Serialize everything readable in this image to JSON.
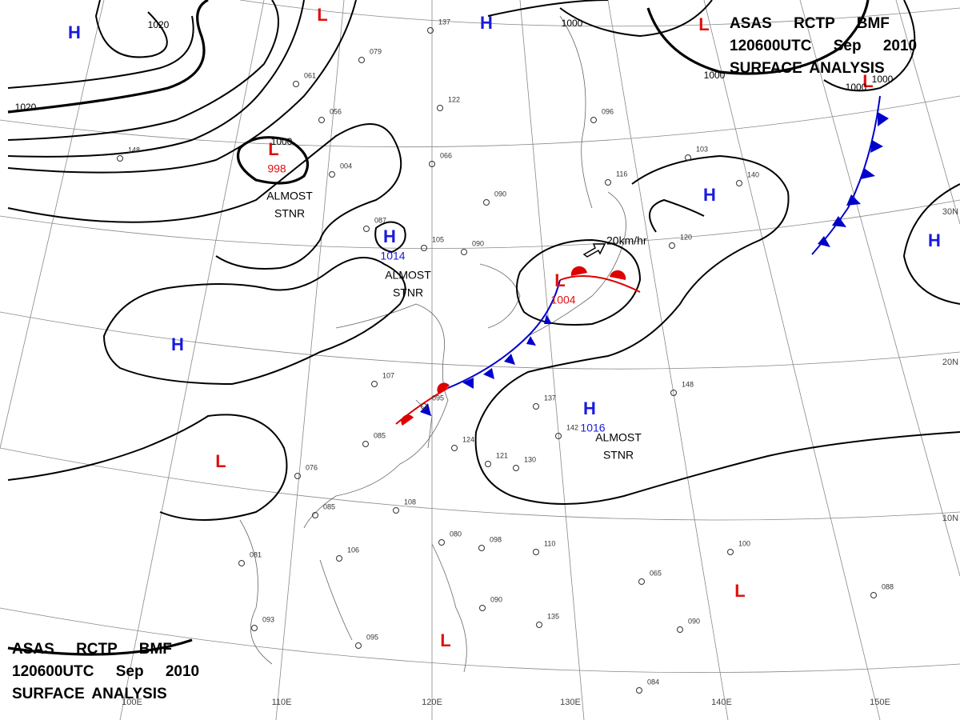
{
  "header": {
    "lines": [
      "ASAS RCTP BMF",
      "120600UTC Sep 2010",
      "SURFACE ANALYSIS"
    ]
  },
  "centers": [
    {
      "type": "H"
    },
    {
      "type": "L"
    },
    {
      "type": "L",
      "pressure": "998",
      "note": [
        "ALMOST",
        "STNR"
      ]
    },
    {
      "type": "H"
    },
    {
      "type": "H",
      "pressure": "1014",
      "note": [
        "ALMOST",
        "STNR"
      ]
    },
    {
      "type": "L",
      "pressure": "1004"
    },
    {
      "type": "H"
    },
    {
      "type": "H",
      "pressure": "1016",
      "note": [
        "ALMOST",
        "STNR"
      ]
    },
    {
      "type": "L"
    },
    {
      "type": "H"
    },
    {
      "type": "H"
    },
    {
      "type": "L"
    },
    {
      "type": "L"
    },
    {
      "type": "L"
    },
    {
      "type": "L"
    }
  ],
  "isobar_labels": [
    "1020",
    "1020",
    "1000",
    "1000",
    "1000",
    "1000",
    "1000"
  ],
  "latitude_labels": [
    "30N",
    "20N",
    "10N"
  ],
  "longitude_labels": [
    "100E",
    "110E",
    "120E",
    "130E",
    "140E",
    "150E"
  ],
  "motion": "20km/hr",
  "stations": [
    "079",
    "061",
    "056",
    "122",
    "137",
    "148",
    "004",
    "066",
    "090",
    "087",
    "105",
    "090",
    "107",
    "095",
    "085",
    "108",
    "076",
    "085",
    "106",
    "081",
    "093",
    "095",
    "080",
    "098",
    "110",
    "124",
    "121",
    "130",
    "142",
    "137",
    "135",
    "100",
    "088",
    "090",
    "084",
    "065",
    "090",
    "148",
    "140",
    "103",
    "116",
    "096",
    "120"
  ]
}
